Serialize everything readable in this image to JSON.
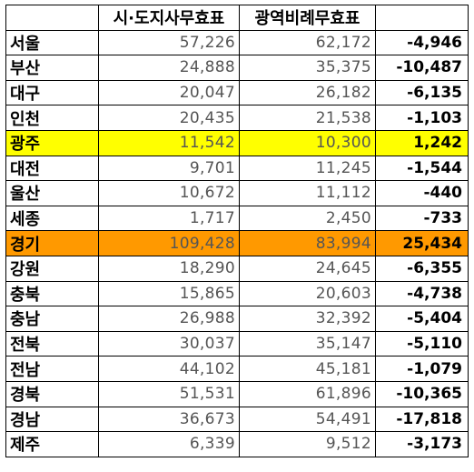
{
  "colors": {
    "highlight_yellow": "#ffff00",
    "highlight_orange": "#ff9900"
  },
  "header": {
    "col0": "",
    "col1": "시·도지사무효표",
    "col2": "광역비례무효표",
    "col3": ""
  },
  "rows": [
    {
      "region": "서울",
      "governor_invalid": "57,226",
      "proportional_invalid": "62,172",
      "difference": "-4,946"
    },
    {
      "region": "부산",
      "governor_invalid": "24,888",
      "proportional_invalid": "35,375",
      "difference": "-10,487"
    },
    {
      "region": "대구",
      "governor_invalid": "20,047",
      "proportional_invalid": "26,182",
      "difference": "-6,135"
    },
    {
      "region": "인천",
      "governor_invalid": "20,435",
      "proportional_invalid": "21,538",
      "difference": "-1,103"
    },
    {
      "region": "광주",
      "governor_invalid": "11,542",
      "proportional_invalid": "10,300",
      "difference": "1,242",
      "highlight": "yellow"
    },
    {
      "region": "대전",
      "governor_invalid": "9,701",
      "proportional_invalid": "11,245",
      "difference": "-1,544"
    },
    {
      "region": "울산",
      "governor_invalid": "10,672",
      "proportional_invalid": "11,112",
      "difference": "-440"
    },
    {
      "region": "세종",
      "governor_invalid": "1,717",
      "proportional_invalid": "2,450",
      "difference": "-733"
    },
    {
      "region": "경기",
      "governor_invalid": "109,428",
      "proportional_invalid": "83,994",
      "difference": "25,434",
      "highlight": "orange"
    },
    {
      "region": "강원",
      "governor_invalid": "18,290",
      "proportional_invalid": "24,645",
      "difference": "-6,355"
    },
    {
      "region": "충북",
      "governor_invalid": "15,865",
      "proportional_invalid": "20,603",
      "difference": "-4,738"
    },
    {
      "region": "충남",
      "governor_invalid": "26,988",
      "proportional_invalid": "32,392",
      "difference": "-5,404"
    },
    {
      "region": "전북",
      "governor_invalid": "30,037",
      "proportional_invalid": "35,147",
      "difference": "-5,110"
    },
    {
      "region": "전남",
      "governor_invalid": "44,102",
      "proportional_invalid": "45,181",
      "difference": "-1,079"
    },
    {
      "region": "경북",
      "governor_invalid": "51,531",
      "proportional_invalid": "61,896",
      "difference": "-10,365"
    },
    {
      "region": "경남",
      "governor_invalid": "36,673",
      "proportional_invalid": "54,491",
      "difference": "-17,818"
    },
    {
      "region": "제주",
      "governor_invalid": "6,339",
      "proportional_invalid": "9,512",
      "difference": "-3,173"
    }
  ]
}
